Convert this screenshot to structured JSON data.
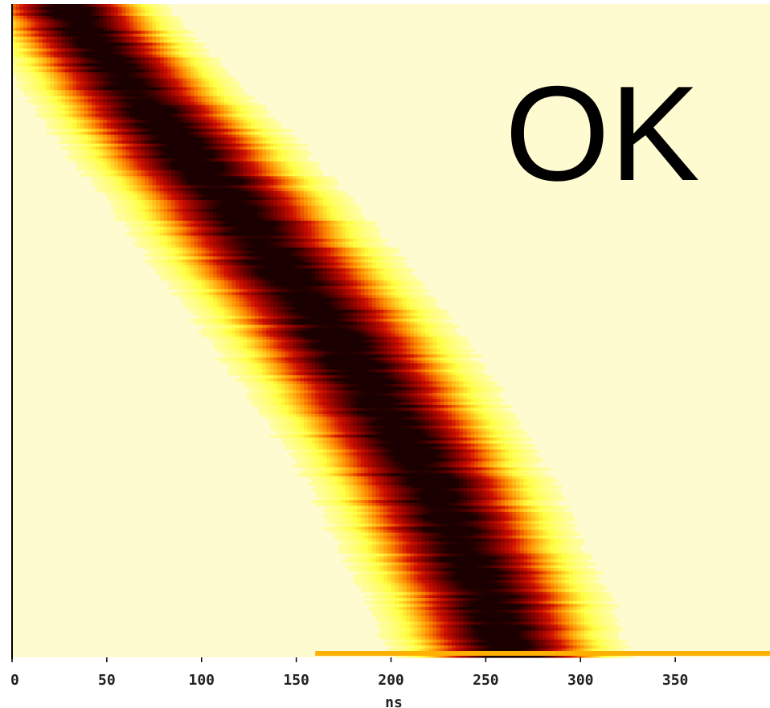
{
  "chart_data": {
    "type": "heatmap",
    "title": "",
    "annotation": "OK",
    "xlabel": "ns",
    "ylabel": "",
    "xlim": [
      0,
      400
    ],
    "x_ticks": [
      0,
      50,
      100,
      150,
      200,
      250,
      300,
      350
    ],
    "x_tick_labels": [
      "0",
      "50",
      "100",
      "150",
      "200",
      "250",
      "300",
      "350"
    ],
    "y_ticks_shown": false,
    "grid": false,
    "legend": "none",
    "colormap": [
      "#fffbd0",
      "#ffff40",
      "#ff8a00",
      "#d01000",
      "#7a0000",
      "#1a0000"
    ],
    "rows": 220,
    "ridge": {
      "description_points": [
        {
          "row_fraction": 0.0,
          "center_ns": 28,
          "width_ns": 22
        },
        {
          "row_fraction": 0.1,
          "center_ns": 55,
          "width_ns": 24
        },
        {
          "row_fraction": 0.2,
          "center_ns": 85,
          "width_ns": 26
        },
        {
          "row_fraction": 0.3,
          "center_ns": 115,
          "width_ns": 27
        },
        {
          "row_fraction": 0.4,
          "center_ns": 142,
          "width_ns": 28
        },
        {
          "row_fraction": 0.5,
          "center_ns": 168,
          "width_ns": 28
        },
        {
          "row_fraction": 0.6,
          "center_ns": 192,
          "width_ns": 28
        },
        {
          "row_fraction": 0.7,
          "center_ns": 214,
          "width_ns": 27
        },
        {
          "row_fraction": 0.8,
          "center_ns": 232,
          "width_ns": 27
        },
        {
          "row_fraction": 0.9,
          "center_ns": 250,
          "width_ns": 27
        },
        {
          "row_fraction": 1.0,
          "center_ns": 262,
          "width_ns": 26
        }
      ]
    },
    "baseline_band": {
      "start_ns": 160,
      "end_ns": 400,
      "color": "#ffb000"
    }
  },
  "colors": {
    "background": "#fffbd0",
    "axis": "#000000"
  }
}
